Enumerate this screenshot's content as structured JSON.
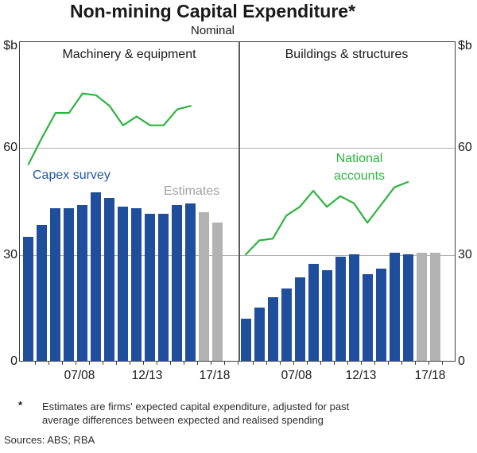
{
  "title": "Non-mining Capital Expenditure*",
  "subtitle": "Nominal",
  "axis": {
    "unit": "$b",
    "ymin": 0,
    "ymax": 90,
    "tick_labels": [
      "0",
      "30",
      "60"
    ],
    "gridlines": [
      30,
      60
    ]
  },
  "colors": {
    "bar_blue": "#1f4e9c",
    "bar_grey": "#b3b3b3",
    "line_green": "#2eb440",
    "legend_blue": "#2257a8",
    "legend_grey": "#a2a2a2",
    "grid_grey": "#b0b0b0"
  },
  "chart_data": [
    {
      "type": "bar",
      "panel_title": "Machinery & equipment",
      "x_tick_labels": [
        "07/08",
        "12/13",
        "17/18"
      ],
      "ylim": [
        0,
        90
      ],
      "series": [
        {
          "name": "Capex survey",
          "kind": "bar",
          "color": "#1f4e9c",
          "values": [
            35,
            38.5,
            43,
            43,
            44,
            47.5,
            46,
            43.5,
            43,
            41.5,
            41.5,
            44,
            44.5
          ]
        },
        {
          "name": "Estimates",
          "kind": "bar",
          "color": "#b3b3b3",
          "values": [
            42,
            39
          ]
        },
        {
          "name": "National accounts",
          "kind": "line",
          "color": "#2eb440",
          "values": [
            55.5,
            63,
            70,
            70,
            75.5,
            75,
            72,
            66.5,
            69,
            66.5,
            66.5,
            71,
            72
          ]
        }
      ],
      "legend": [
        {
          "label": "Capex survey",
          "color": "#2257a8"
        },
        {
          "label": "Estimates",
          "color": "#a2a2a2"
        }
      ]
    },
    {
      "type": "bar",
      "panel_title": "Buildings & structures",
      "x_tick_labels": [
        "07/08",
        "12/13",
        "17/18"
      ],
      "ylim": [
        0,
        90
      ],
      "series": [
        {
          "name": "Capex survey",
          "kind": "bar",
          "color": "#1f4e9c",
          "values": [
            12,
            15,
            18,
            20.5,
            23.5,
            27.5,
            25.5,
            29.5,
            30,
            24.5,
            26,
            30.5,
            30
          ]
        },
        {
          "name": "Estimates",
          "kind": "bar",
          "color": "#b3b3b3",
          "values": [
            30.5,
            30.5
          ]
        },
        {
          "name": "National accounts",
          "kind": "line",
          "color": "#2eb440",
          "values": [
            30,
            34,
            34.5,
            41,
            43.5,
            48,
            43.5,
            46.5,
            44.5,
            39,
            44,
            49,
            50.5
          ]
        }
      ],
      "legend": [
        {
          "label": "National accounts",
          "color": "#2eb440"
        }
      ]
    }
  ],
  "footnote": {
    "marker": "*",
    "text": "Estimates are firms' expected capital expenditure, adjusted for past average differences between expected and realised spending"
  },
  "sources": "Sources: ABS; RBA"
}
